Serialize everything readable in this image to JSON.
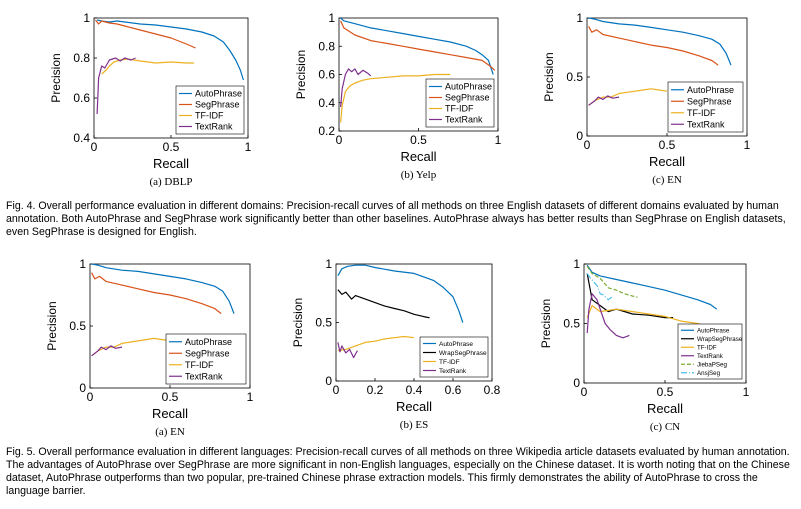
{
  "colors": {
    "AutoPhrase": "#0072BD",
    "SegPhrase": "#D95319",
    "TF-IDF": "#EDB120",
    "TextRank": "#7E2F8E",
    "JiebaPSeg": "#77AC30",
    "AnsjSeg": "#4DBEEE"
  },
  "captions": {
    "fig4": "Fig. 4. Overall performance evaluation in different domains: Precision-recall curves of all methods on three English datasets of different domains evaluated by human annotation. Both AutoPhrase and SegPhrase work significantly better than other baselines. AutoPhrase always has better results than SegPhrase on English datasets, even SegPhrase is designed for English.",
    "fig5": "Fig. 5. Overall performance evaluation in different languages: Precision-recall curves of all methods on three Wikipedia article datasets evaluated by human annotation. The advantages of AutoPhrase over SegPhrase are more significant in non-English languages, especially on the Chinese dataset. It is worth noting that on the Chinese dataset, AutoPhrase outperforms than two popular, pre-trained Chinese phrase extraction models. This firmly demonstrates the ability of AutoPhrase to cross the language barrier."
  },
  "chart_data": [
    {
      "type": "line",
      "subtitle": "(a)  DBLP",
      "xlabel": "Recall",
      "ylabel": "Precision",
      "xlim": [
        0,
        1
      ],
      "ylim": [
        0.4,
        1
      ],
      "xticks": [
        "0",
        "0.5",
        "1"
      ],
      "yticks": [
        "0.4",
        "0.6",
        "0.8",
        "1"
      ],
      "legend_position": "bottom-right",
      "series": [
        {
          "name": "AutoPhrase",
          "x": [
            0.02,
            0.05,
            0.1,
            0.15,
            0.2,
            0.3,
            0.4,
            0.5,
            0.6,
            0.7,
            0.78,
            0.84,
            0.88,
            0.92,
            0.95,
            0.97
          ],
          "y": [
            0.99,
            0.985,
            0.98,
            0.985,
            0.98,
            0.97,
            0.965,
            0.955,
            0.945,
            0.93,
            0.91,
            0.88,
            0.84,
            0.79,
            0.74,
            0.69
          ]
        },
        {
          "name": "SegPhrase",
          "x": [
            0.01,
            0.03,
            0.05,
            0.1,
            0.15,
            0.2,
            0.3,
            0.4,
            0.5,
            0.6,
            0.66
          ],
          "y": [
            0.99,
            0.97,
            0.985,
            0.975,
            0.97,
            0.96,
            0.94,
            0.92,
            0.9,
            0.87,
            0.85
          ]
        },
        {
          "name": "TF-IDF",
          "x": [
            0.05,
            0.08,
            0.1,
            0.13,
            0.17,
            0.22,
            0.3,
            0.4,
            0.5,
            0.6,
            0.65
          ],
          "y": [
            0.72,
            0.74,
            0.76,
            0.78,
            0.79,
            0.795,
            0.785,
            0.775,
            0.78,
            0.775,
            0.775
          ]
        },
        {
          "name": "TextRank",
          "x": [
            0.02,
            0.025,
            0.03,
            0.05,
            0.07,
            0.1,
            0.14,
            0.17,
            0.2,
            0.24,
            0.27
          ],
          "y": [
            0.52,
            0.6,
            0.7,
            0.76,
            0.75,
            0.79,
            0.8,
            0.785,
            0.8,
            0.79,
            0.8
          ]
        }
      ]
    },
    {
      "type": "line",
      "subtitle": "(b)  Yelp",
      "xlabel": "Recall",
      "ylabel": "Precision",
      "xlim": [
        0,
        1
      ],
      "ylim": [
        0.2,
        1
      ],
      "xticks": [
        "0",
        "0.5",
        "1"
      ],
      "yticks": [
        "0.2",
        "0.4",
        "0.6",
        "0.8",
        "1"
      ],
      "legend_position": "bottom-right",
      "series": [
        {
          "name": "AutoPhrase",
          "x": [
            0.01,
            0.03,
            0.1,
            0.2,
            0.3,
            0.4,
            0.5,
            0.6,
            0.7,
            0.8,
            0.86,
            0.9,
            0.94,
            0.97
          ],
          "y": [
            1.0,
            0.98,
            0.96,
            0.93,
            0.91,
            0.89,
            0.87,
            0.85,
            0.83,
            0.8,
            0.77,
            0.74,
            0.7,
            0.6
          ]
        },
        {
          "name": "SegPhrase",
          "x": [
            0.01,
            0.03,
            0.1,
            0.2,
            0.3,
            0.4,
            0.5,
            0.6,
            0.7,
            0.8,
            0.9,
            0.95,
            0.98
          ],
          "y": [
            0.98,
            0.93,
            0.88,
            0.84,
            0.82,
            0.8,
            0.78,
            0.76,
            0.74,
            0.72,
            0.7,
            0.66,
            0.63
          ]
        },
        {
          "name": "TF-IDF",
          "x": [
            0.01,
            0.02,
            0.04,
            0.07,
            0.1,
            0.15,
            0.2,
            0.3,
            0.4,
            0.5,
            0.6,
            0.7
          ],
          "y": [
            0.26,
            0.38,
            0.48,
            0.52,
            0.54,
            0.56,
            0.57,
            0.58,
            0.59,
            0.59,
            0.6,
            0.6
          ]
        },
        {
          "name": "TextRank",
          "x": [
            0.01,
            0.02,
            0.04,
            0.06,
            0.08,
            0.1,
            0.12,
            0.15,
            0.18,
            0.2
          ],
          "y": [
            0.37,
            0.5,
            0.6,
            0.64,
            0.62,
            0.64,
            0.6,
            0.63,
            0.61,
            0.59
          ]
        }
      ]
    },
    {
      "type": "line",
      "subtitle": "(c)  EN",
      "xlabel": "Recall",
      "ylabel": "Precision",
      "xlim": [
        0,
        1
      ],
      "ylim": [
        0,
        1
      ],
      "xticks": [
        "0",
        "0.5",
        "1"
      ],
      "yticks": [
        "0",
        "0.5",
        "1"
      ],
      "legend_position": "bottom-right",
      "series": [
        {
          "name": "AutoPhrase",
          "x": [
            0.01,
            0.05,
            0.1,
            0.2,
            0.3,
            0.4,
            0.5,
            0.6,
            0.7,
            0.78,
            0.83,
            0.87,
            0.9
          ],
          "y": [
            1.0,
            0.99,
            0.97,
            0.95,
            0.94,
            0.92,
            0.9,
            0.88,
            0.85,
            0.82,
            0.78,
            0.7,
            0.6
          ]
        },
        {
          "name": "SegPhrase",
          "x": [
            0.01,
            0.03,
            0.06,
            0.1,
            0.2,
            0.3,
            0.4,
            0.5,
            0.6,
            0.7,
            0.78,
            0.82
          ],
          "y": [
            0.93,
            0.88,
            0.9,
            0.86,
            0.83,
            0.8,
            0.77,
            0.75,
            0.72,
            0.68,
            0.64,
            0.6
          ]
        },
        {
          "name": "TF-IDF",
          "x": [
            0.01,
            0.05,
            0.1,
            0.15,
            0.2,
            0.25,
            0.3,
            0.35,
            0.4,
            0.45,
            0.5
          ],
          "y": [
            0.26,
            0.3,
            0.33,
            0.33,
            0.36,
            0.37,
            0.38,
            0.39,
            0.4,
            0.39,
            0.38
          ]
        },
        {
          "name": "TextRank",
          "x": [
            0.01,
            0.03,
            0.05,
            0.07,
            0.1,
            0.13,
            0.16,
            0.2
          ],
          "y": [
            0.26,
            0.28,
            0.3,
            0.33,
            0.31,
            0.34,
            0.32,
            0.33
          ]
        }
      ]
    },
    {
      "type": "line",
      "subtitle": "(a)  EN",
      "xlabel": "Recall",
      "ylabel": "Precision",
      "xlim": [
        0,
        1
      ],
      "ylim": [
        0,
        1
      ],
      "xticks": [
        "0",
        "0.5",
        "1"
      ],
      "yticks": [
        "0",
        "0.5",
        "1"
      ],
      "legend_position": "bottom-right",
      "series": [
        {
          "name": "AutoPhrase",
          "x": [
            0.01,
            0.05,
            0.1,
            0.2,
            0.3,
            0.4,
            0.5,
            0.6,
            0.7,
            0.78,
            0.83,
            0.87,
            0.9
          ],
          "y": [
            1.0,
            0.99,
            0.97,
            0.95,
            0.94,
            0.92,
            0.9,
            0.88,
            0.85,
            0.82,
            0.78,
            0.7,
            0.6
          ]
        },
        {
          "name": "SegPhrase",
          "x": [
            0.01,
            0.03,
            0.06,
            0.1,
            0.2,
            0.3,
            0.4,
            0.5,
            0.6,
            0.7,
            0.78,
            0.82
          ],
          "y": [
            0.93,
            0.88,
            0.9,
            0.86,
            0.83,
            0.8,
            0.77,
            0.75,
            0.72,
            0.68,
            0.64,
            0.6
          ]
        },
        {
          "name": "TF-IDF",
          "x": [
            0.01,
            0.05,
            0.1,
            0.15,
            0.2,
            0.25,
            0.3,
            0.35,
            0.4,
            0.45,
            0.5
          ],
          "y": [
            0.26,
            0.3,
            0.33,
            0.33,
            0.36,
            0.37,
            0.38,
            0.39,
            0.4,
            0.39,
            0.38
          ]
        },
        {
          "name": "TextRank",
          "x": [
            0.01,
            0.03,
            0.05,
            0.07,
            0.1,
            0.13,
            0.16,
            0.2
          ],
          "y": [
            0.26,
            0.28,
            0.3,
            0.33,
            0.31,
            0.34,
            0.32,
            0.33
          ]
        }
      ]
    },
    {
      "type": "line",
      "subtitle": "(b)  ES",
      "xlabel": "Recall",
      "ylabel": "Precision",
      "xlim": [
        0,
        0.8
      ],
      "ylim": [
        0,
        1
      ],
      "xticks": [
        "0",
        "0.2",
        "0.4",
        "0.6",
        "0.8"
      ],
      "yticks": [
        "0",
        "0.5",
        "1"
      ],
      "legend_position": "bottom-right",
      "series": [
        {
          "name": "AutoPhrase",
          "x": [
            0.01,
            0.03,
            0.06,
            0.1,
            0.15,
            0.2,
            0.3,
            0.4,
            0.5,
            0.55,
            0.6,
            0.63,
            0.65
          ],
          "y": [
            0.9,
            0.96,
            0.98,
            0.99,
            0.99,
            0.97,
            0.94,
            0.92,
            0.86,
            0.8,
            0.72,
            0.6,
            0.5
          ]
        },
        {
          "name": "WrapSegPhrase",
          "x": [
            0.01,
            0.03,
            0.05,
            0.08,
            0.1,
            0.15,
            0.2,
            0.25,
            0.3,
            0.35,
            0.4,
            0.45,
            0.48
          ],
          "y": [
            0.78,
            0.74,
            0.76,
            0.7,
            0.73,
            0.7,
            0.67,
            0.64,
            0.62,
            0.6,
            0.57,
            0.55,
            0.54
          ]
        },
        {
          "name": "TF-IDF",
          "x": [
            0.01,
            0.05,
            0.1,
            0.15,
            0.2,
            0.25,
            0.3,
            0.35,
            0.4
          ],
          "y": [
            0.26,
            0.27,
            0.3,
            0.33,
            0.34,
            0.36,
            0.37,
            0.38,
            0.37
          ]
        },
        {
          "name": "TextRank",
          "x": [
            0.01,
            0.02,
            0.03,
            0.05,
            0.07,
            0.09,
            0.11
          ],
          "y": [
            0.33,
            0.25,
            0.3,
            0.24,
            0.27,
            0.2,
            0.26
          ]
        }
      ]
    },
    {
      "type": "line",
      "subtitle": "(c)  CN",
      "xlabel": "Recall",
      "ylabel": "Precision",
      "xlim": [
        0,
        1
      ],
      "ylim": [
        0,
        1
      ],
      "xticks": [
        "0",
        "0.5",
        "1"
      ],
      "yticks": [
        "0",
        "0.5",
        "1"
      ],
      "legend_position": "bottom-right",
      "series": [
        {
          "name": "AutoPhrase",
          "x": [
            0.02,
            0.05,
            0.1,
            0.2,
            0.3,
            0.4,
            0.5,
            0.6,
            0.7,
            0.78,
            0.82
          ],
          "y": [
            0.99,
            0.93,
            0.9,
            0.87,
            0.84,
            0.81,
            0.78,
            0.74,
            0.7,
            0.66,
            0.62
          ]
        },
        {
          "name": "WrapSegPhrase",
          "x": [
            0.02,
            0.05,
            0.1,
            0.15,
            0.2,
            0.3,
            0.4,
            0.5,
            0.55
          ],
          "y": [
            0.92,
            0.7,
            0.65,
            0.6,
            0.62,
            0.58,
            0.57,
            0.55,
            0.55
          ]
        },
        {
          "name": "TF-IDF",
          "x": [
            0.02,
            0.05,
            0.1,
            0.2,
            0.3,
            0.4,
            0.5,
            0.6,
            0.7,
            0.78
          ],
          "y": [
            0.55,
            0.65,
            0.6,
            0.62,
            0.6,
            0.58,
            0.56,
            0.52,
            0.5,
            0.47
          ]
        },
        {
          "name": "TextRank",
          "x": [
            0.02,
            0.03,
            0.05,
            0.08,
            0.1,
            0.13,
            0.16,
            0.2,
            0.24,
            0.28
          ],
          "y": [
            0.42,
            0.62,
            0.75,
            0.7,
            0.62,
            0.5,
            0.45,
            0.4,
            0.38,
            0.4
          ]
        },
        {
          "name": "JiebaPSeg",
          "x": [
            0.02,
            0.05,
            0.1,
            0.15,
            0.2,
            0.25,
            0.3,
            0.33
          ],
          "y": [
            0.98,
            0.92,
            0.88,
            0.8,
            0.78,
            0.75,
            0.73,
            0.72
          ]
        },
        {
          "name": "AnsjSeg",
          "x": [
            0.02,
            0.04,
            0.06,
            0.08,
            0.1,
            0.12,
            0.15,
            0.18
          ],
          "y": [
            0.92,
            0.88,
            0.85,
            0.82,
            0.75,
            0.74,
            0.7,
            0.73
          ]
        }
      ]
    }
  ]
}
